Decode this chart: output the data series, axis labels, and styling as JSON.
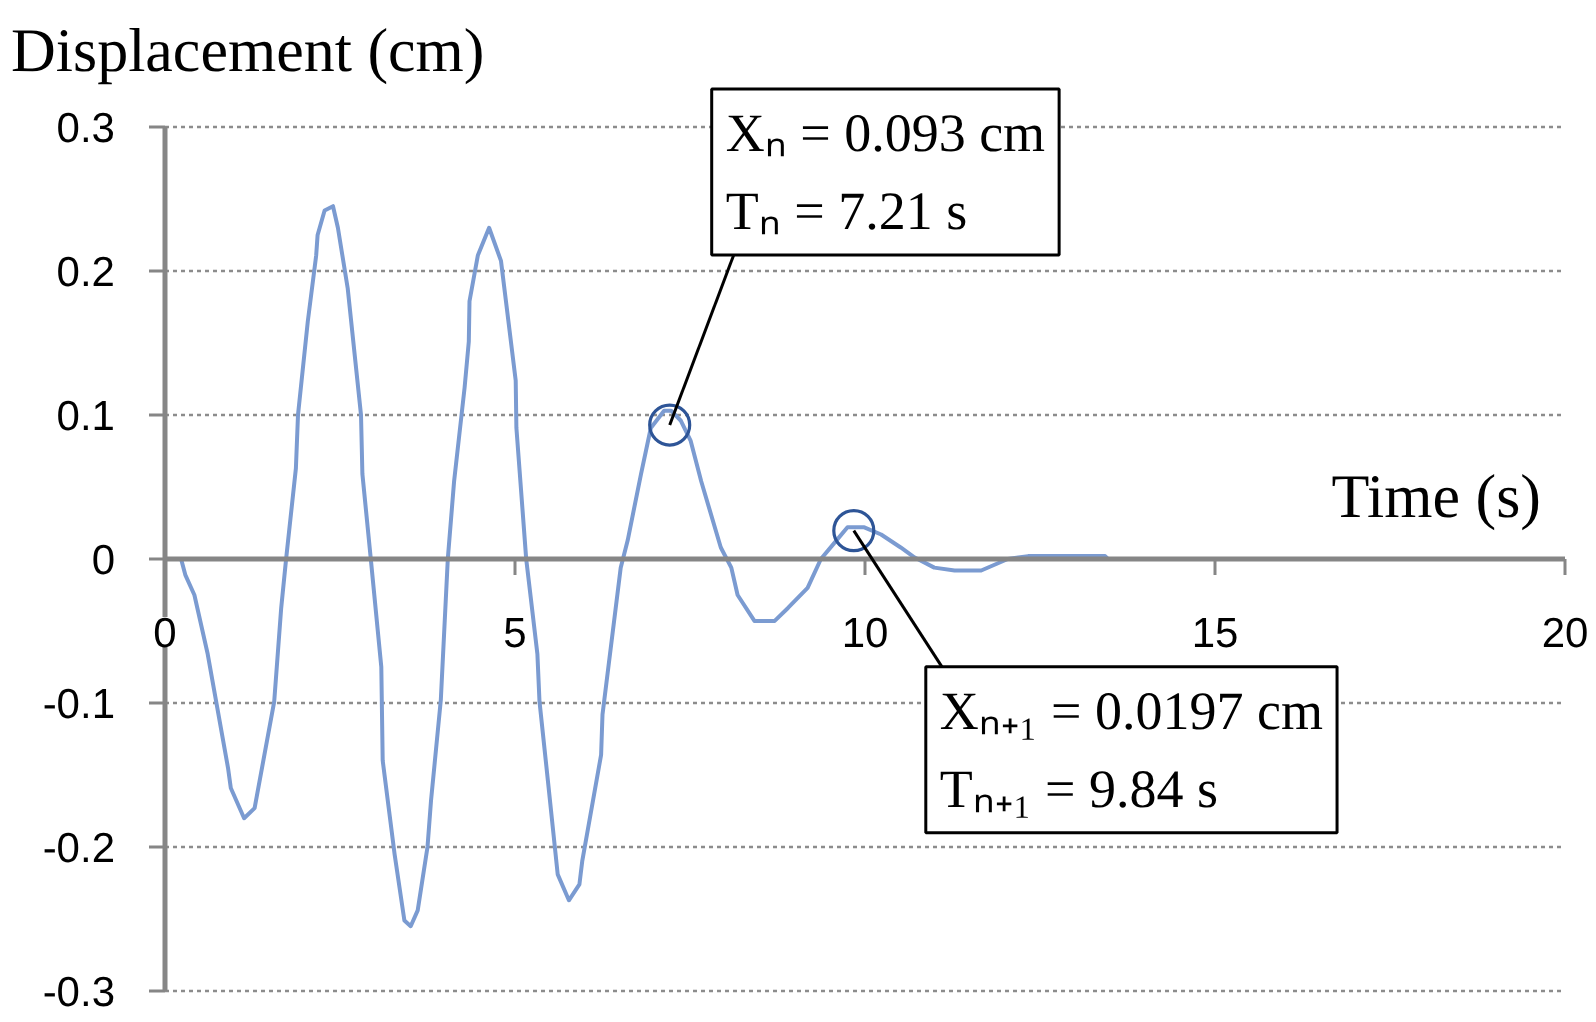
{
  "chart_data": {
    "type": "line",
    "xlabel": "Time (s)",
    "ylabel": "Displacement (cm)",
    "x": [
      0,
      0.23,
      0.29,
      0.42,
      0.61,
      0.9,
      0.94,
      1.13,
      1.28,
      1.56,
      1.66,
      1.73,
      1.87,
      1.9,
      2.04,
      2.16,
      2.18,
      2.28,
      2.4,
      2.47,
      2.61,
      2.8,
      2.82,
      2.94,
      3.09,
      3.11,
      3.28,
      3.42,
      3.51,
      3.61,
      3.75,
      3.8,
      3.94,
      4.04,
      4.13,
      4.28,
      4.34,
      4.35,
      4.47,
      4.63,
      4.8,
      5.01,
      5.02,
      5.16,
      5.32,
      5.35,
      5.47,
      5.61,
      5.77,
      5.92,
      5.96,
      6.23,
      6.25,
      6.51,
      6.61,
      6.8,
      6.94,
      7.13,
      7.23,
      7.37,
      7.51,
      7.66,
      7.94,
      8.09,
      8.18,
      8.42,
      8.71,
      8.9,
      9.18,
      9.37,
      9.56,
      9.75,
      9.99,
      10.23,
      10.51,
      10.71,
      10.99,
      11.28,
      11.66,
      12.04,
      12.33,
      13.43,
      13.47,
      20
    ],
    "values": [
      0,
      0,
      -0.011,
      -0.025,
      -0.066,
      -0.145,
      -0.159,
      -0.18,
      -0.173,
      -0.099,
      -0.034,
      0,
      0.063,
      0.1,
      0.165,
      0.211,
      0.225,
      0.242,
      0.245,
      0.23,
      0.188,
      0.1,
      0.059,
      0,
      -0.075,
      -0.14,
      -0.205,
      -0.251,
      -0.255,
      -0.244,
      -0.2,
      -0.168,
      -0.098,
      0,
      0.054,
      0.119,
      0.151,
      0.179,
      0.211,
      0.23,
      0.207,
      0.124,
      0.091,
      0,
      -0.066,
      -0.099,
      -0.154,
      -0.219,
      -0.237,
      -0.226,
      -0.21,
      -0.136,
      -0.108,
      -0.006,
      0.013,
      0.059,
      0.091,
      0.103,
      0.103,
      0.096,
      0.082,
      0.054,
      0.008,
      -0.006,
      -0.025,
      -0.043,
      -0.043,
      -0.034,
      -0.02,
      0,
      0.011,
      0.022,
      0.022,
      0.017,
      0.008,
      0.001,
      -0.006,
      -0.008,
      -0.008,
      0,
      0.002,
      0.002,
      0,
      0
    ],
    "color": "#7b9bd1",
    "xlim": [
      0,
      20
    ],
    "xticks": [
      0,
      5,
      10,
      15,
      20
    ],
    "ylim": [
      -0.3,
      0.3
    ],
    "yticks": [
      -0.3,
      -0.2,
      -0.1,
      0,
      0.1,
      0.2,
      0.3
    ],
    "grid": "y",
    "annotations": [
      {
        "text": "Xₙ = 0.093 cm\nTₙ = 7.21 s",
        "x": 7.21,
        "y": 0.093
      },
      {
        "text": "Xₙ₊₁ = 0.0197 cm\nTₙ₊₁ = 9.84 s",
        "x": 9.84,
        "y": 0.0197
      }
    ]
  }
}
